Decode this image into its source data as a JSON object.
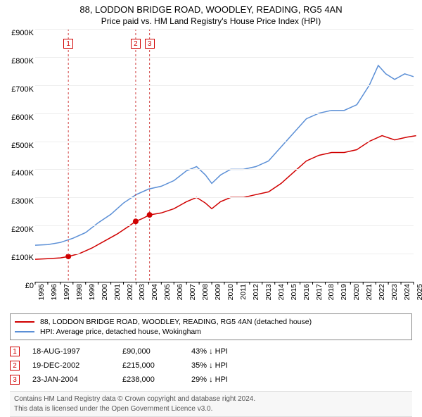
{
  "title": "88, LODDON BRIDGE ROAD, WOODLEY, READING, RG5 4AN",
  "subtitle": "Price paid vs. HM Land Registry's House Price Index (HPI)",
  "chart": {
    "type": "line",
    "background_color": "#ffffff",
    "grid_color": "#eeeeee",
    "x_range_years": [
      1995,
      2025
    ],
    "y_range": [
      0,
      900000
    ],
    "y_ticks": [
      0,
      100000,
      200000,
      300000,
      400000,
      500000,
      600000,
      700000,
      800000,
      900000
    ],
    "y_tick_labels": [
      "£0",
      "£100K",
      "£200K",
      "£300K",
      "£400K",
      "£500K",
      "£600K",
      "£700K",
      "£800K",
      "£900K"
    ],
    "x_ticks": [
      1995,
      1996,
      1997,
      1998,
      1999,
      2000,
      2001,
      2002,
      2003,
      2004,
      2005,
      2006,
      2007,
      2008,
      2009,
      2010,
      2011,
      2012,
      2013,
      2014,
      2015,
      2016,
      2017,
      2018,
      2019,
      2020,
      2021,
      2022,
      2023,
      2024,
      2025
    ],
    "title_fontsize": 13,
    "label_fontsize": 11,
    "tick_fontsize": 10.5,
    "series": [
      {
        "name": "property",
        "label": "88, LODDON BRIDGE ROAD, WOODLEY, READING, RG5 4AN (detached house)",
        "color": "#d00000",
        "line_width": 1.5,
        "points": [
          [
            1995.0,
            80000
          ],
          [
            1996.0,
            82000
          ],
          [
            1997.0,
            85000
          ],
          [
            1997.63,
            90000
          ],
          [
            1998.5,
            100000
          ],
          [
            1999.5,
            120000
          ],
          [
            2000.5,
            145000
          ],
          [
            2001.5,
            170000
          ],
          [
            2002.5,
            200000
          ],
          [
            2002.97,
            215000
          ],
          [
            2003.5,
            225000
          ],
          [
            2004.07,
            238000
          ],
          [
            2005.0,
            245000
          ],
          [
            2006.0,
            260000
          ],
          [
            2007.0,
            285000
          ],
          [
            2007.8,
            300000
          ],
          [
            2008.5,
            280000
          ],
          [
            2009.0,
            260000
          ],
          [
            2009.7,
            285000
          ],
          [
            2010.5,
            300000
          ],
          [
            2011.5,
            300000
          ],
          [
            2012.5,
            310000
          ],
          [
            2013.5,
            320000
          ],
          [
            2014.5,
            350000
          ],
          [
            2015.5,
            390000
          ],
          [
            2016.5,
            430000
          ],
          [
            2017.5,
            450000
          ],
          [
            2018.5,
            460000
          ],
          [
            2019.5,
            460000
          ],
          [
            2020.5,
            470000
          ],
          [
            2021.5,
            500000
          ],
          [
            2022.5,
            520000
          ],
          [
            2023.5,
            505000
          ],
          [
            2024.5,
            515000
          ],
          [
            2025.2,
            520000
          ]
        ]
      },
      {
        "name": "hpi",
        "label": "HPI: Average price, detached house, Wokingham",
        "color": "#5b8fd6",
        "line_width": 1.5,
        "points": [
          [
            1995.0,
            130000
          ],
          [
            1996.0,
            132000
          ],
          [
            1997.0,
            140000
          ],
          [
            1998.0,
            155000
          ],
          [
            1999.0,
            175000
          ],
          [
            2000.0,
            210000
          ],
          [
            2001.0,
            240000
          ],
          [
            2002.0,
            280000
          ],
          [
            2003.0,
            310000
          ],
          [
            2004.0,
            330000
          ],
          [
            2005.0,
            340000
          ],
          [
            2006.0,
            360000
          ],
          [
            2007.0,
            395000
          ],
          [
            2007.8,
            410000
          ],
          [
            2008.5,
            380000
          ],
          [
            2009.0,
            350000
          ],
          [
            2009.7,
            380000
          ],
          [
            2010.5,
            400000
          ],
          [
            2011.5,
            400000
          ],
          [
            2012.5,
            410000
          ],
          [
            2013.5,
            430000
          ],
          [
            2014.5,
            480000
          ],
          [
            2015.5,
            530000
          ],
          [
            2016.5,
            580000
          ],
          [
            2017.5,
            600000
          ],
          [
            2018.5,
            610000
          ],
          [
            2019.5,
            610000
          ],
          [
            2020.5,
            630000
          ],
          [
            2021.5,
            700000
          ],
          [
            2022.2,
            770000
          ],
          [
            2022.8,
            740000
          ],
          [
            2023.5,
            720000
          ],
          [
            2024.3,
            740000
          ],
          [
            2025.0,
            730000
          ]
        ]
      }
    ],
    "transactions": [
      {
        "n": "1",
        "year": 1997.63,
        "price": 90000
      },
      {
        "n": "2",
        "year": 2002.97,
        "price": 215000
      },
      {
        "n": "3",
        "year": 2004.07,
        "price": 238000
      }
    ],
    "marker_color": "#d00000",
    "marker_radius": 4,
    "dash_color": "#d04040"
  },
  "legend": {
    "items": [
      {
        "color": "#d00000",
        "label": "88, LODDON BRIDGE ROAD, WOODLEY, READING, RG5 4AN (detached house)"
      },
      {
        "color": "#5b8fd6",
        "label": "HPI: Average price, detached house, Wokingham"
      }
    ]
  },
  "transactions_table": [
    {
      "n": "1",
      "date": "18-AUG-1997",
      "price": "£90,000",
      "diff": "43% ↓ HPI"
    },
    {
      "n": "2",
      "date": "19-DEC-2002",
      "price": "£215,000",
      "diff": "35% ↓ HPI"
    },
    {
      "n": "3",
      "date": "23-JAN-2004",
      "price": "£238,000",
      "diff": "29% ↓ HPI"
    }
  ],
  "footer_line1": "Contains HM Land Registry data © Crown copyright and database right 2024.",
  "footer_line2": "This data is licensed under the Open Government Licence v3.0."
}
